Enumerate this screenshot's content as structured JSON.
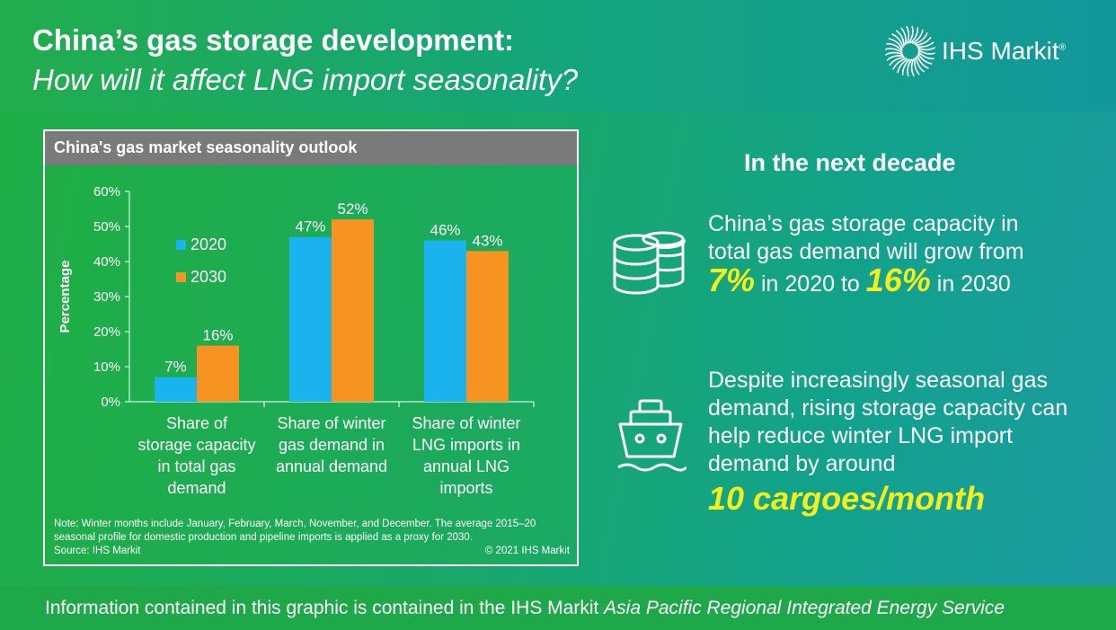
{
  "header": {
    "title": "China’s gas storage development:",
    "subtitle": "How will it affect LNG import seasonality?"
  },
  "logo": {
    "text": "IHS Markit",
    "mark": "®",
    "icon": "sunburst-logo-icon"
  },
  "chart_panel": {
    "title": "China's gas market seasonality outlook",
    "note": "Note: Winter months include January, February, March, November, and December. The average 2015–20 seasonal profile for domestic production and pipeline imports is applied as a proxy for 2030.",
    "source": "Source: IHS Markit",
    "copyright": "© 2021 IHS Markit"
  },
  "chart_data": {
    "type": "bar",
    "title": "China's gas market seasonality outlook",
    "ylabel": "Percentage",
    "xlabel": "",
    "ylim": [
      0,
      60
    ],
    "yticks": [
      "0%",
      "10%",
      "20%",
      "30%",
      "40%",
      "50%",
      "60%"
    ],
    "categories": [
      [
        "Share of",
        "storage capacity",
        "in total gas",
        "demand"
      ],
      [
        "Share of winter",
        "gas demand in",
        "annual demand"
      ],
      [
        "Share of winter",
        "LNG imports in",
        "annual LNG",
        "imports"
      ]
    ],
    "series": [
      {
        "name": "2020",
        "color": "#1ab3ee",
        "values": [
          7,
          47,
          46
        ],
        "labels": [
          "7%",
          "47%",
          "46%"
        ]
      },
      {
        "name": "2030",
        "color": "#f79421",
        "values": [
          16,
          52,
          43
        ],
        "labels": [
          "16%",
          "52%",
          "43%"
        ]
      }
    ],
    "legend_position": "left-inside",
    "grid": false
  },
  "right": {
    "heading": "In the next decade",
    "storage": {
      "line1": "China’s gas storage capacity in",
      "line2": "total gas demand will grow from",
      "v1": "7%",
      "mid": " in 2020 to ",
      "v2": "16%",
      "end": " in 2030",
      "icon": "database-icon"
    },
    "cargo": {
      "text": "Despite increasingly seasonal gas demand, rising storage capacity can help reduce winter LNG import demand by around",
      "highlight": "10 cargoes/month",
      "icon": "ship-icon"
    }
  },
  "footer": {
    "text": "Information contained in this graphic is contained in the IHS Markit ",
    "italic": "Asia Pacific Regional Integrated Energy Service"
  },
  "colors": {
    "highlight": "#f2ef1a",
    "series_2020": "#1ab3ee",
    "series_2030": "#f79421"
  }
}
